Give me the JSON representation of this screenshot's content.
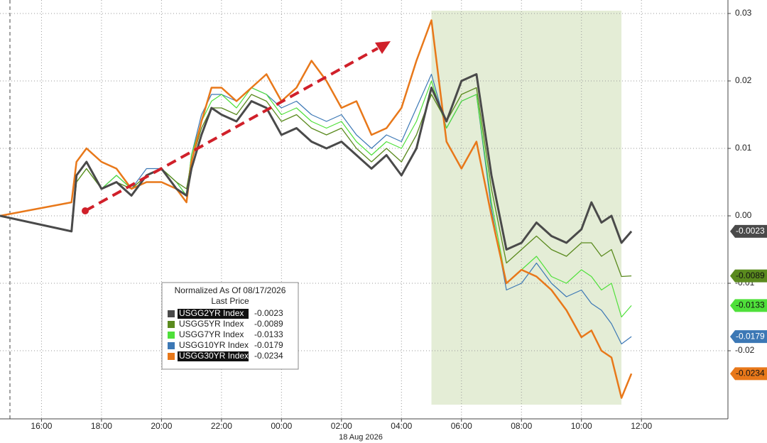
{
  "chart_data": {
    "type": "line",
    "x": [
      "2026-08-17 14:37",
      "2026-08-17 17:00",
      "2026-08-17 17:10",
      "2026-08-17 17:30",
      "2026-08-17 18:00",
      "2026-08-17 18:30",
      "2026-08-17 19:00",
      "2026-08-17 19:30",
      "2026-08-17 20:00",
      "2026-08-17 20:30",
      "2026-08-17 20:50",
      "2026-08-17 21:00",
      "2026-08-17 21:20",
      "2026-08-17 21:40",
      "2026-08-17 22:00",
      "2026-08-17 22:30",
      "2026-08-17 23:00",
      "2026-08-17 23:30",
      "2026-08-18 00:00",
      "2026-08-18 00:30",
      "2026-08-18 01:00",
      "2026-08-18 01:30",
      "2026-08-18 02:00",
      "2026-08-18 02:30",
      "2026-08-18 03:00",
      "2026-08-18 03:30",
      "2026-08-18 04:00",
      "2026-08-18 04:30",
      "2026-08-18 05:00",
      "2026-08-18 05:30",
      "2026-08-18 06:00",
      "2026-08-18 06:30",
      "2026-08-18 07:00",
      "2026-08-18 07:30",
      "2026-08-18 08:00",
      "2026-08-18 08:30",
      "2026-08-18 09:00",
      "2026-08-18 09:30",
      "2026-08-18 10:00",
      "2026-08-18 10:20",
      "2026-08-18 10:40",
      "2026-08-18 11:00",
      "2026-08-18 11:20",
      "2026-08-18 11:40"
    ],
    "series": [
      {
        "name": "USGG2YR Index",
        "color": "#4a4a4a",
        "last_price": -0.0023,
        "values": [
          0,
          -0.0023,
          0.006,
          0.008,
          0.004,
          0.005,
          0.003,
          0.006,
          0.007,
          0.004,
          0.003,
          0.007,
          0.012,
          0.016,
          0.015,
          0.014,
          0.017,
          0.016,
          0.012,
          0.013,
          0.011,
          0.01,
          0.011,
          0.009,
          0.007,
          0.009,
          0.006,
          0.01,
          0.019,
          0.014,
          0.02,
          0.021,
          0.006,
          -0.005,
          -0.004,
          -0.001,
          -0.003,
          -0.004,
          -0.002,
          0.002,
          -0.001,
          0.0,
          -0.004,
          -0.0023
        ]
      },
      {
        "name": "USGG5YR Index",
        "color": "#5a8a1e",
        "last_price": -0.0089,
        "values": [
          0,
          -0.0023,
          0.005,
          0.007,
          0.004,
          0.005,
          0.004,
          0.006,
          0.007,
          0.005,
          0.004,
          0.008,
          0.013,
          0.016,
          0.016,
          0.015,
          0.018,
          0.017,
          0.014,
          0.015,
          0.013,
          0.012,
          0.013,
          0.01,
          0.008,
          0.01,
          0.008,
          0.012,
          0.018,
          0.014,
          0.018,
          0.019,
          0.004,
          -0.007,
          -0.005,
          -0.003,
          -0.005,
          -0.006,
          -0.004,
          -0.004,
          -0.006,
          -0.005,
          -0.009,
          -0.0089
        ]
      },
      {
        "name": "USGG7YR Index",
        "color": "#4fe03a",
        "last_price": -0.0133,
        "values": [
          0,
          -0.0023,
          0.005,
          0.007,
          0.004,
          0.006,
          0.004,
          0.006,
          0.007,
          0.005,
          0.003,
          0.009,
          0.014,
          0.017,
          0.018,
          0.016,
          0.019,
          0.018,
          0.015,
          0.016,
          0.014,
          0.013,
          0.014,
          0.011,
          0.009,
          0.011,
          0.01,
          0.014,
          0.02,
          0.013,
          0.017,
          0.018,
          0.002,
          -0.01,
          -0.008,
          -0.006,
          -0.009,
          -0.01,
          -0.008,
          -0.009,
          -0.011,
          -0.01,
          -0.015,
          -0.0133
        ]
      },
      {
        "name": "USGG10YR Index",
        "color": "#3c78b5",
        "last_price": -0.0179,
        "values": [
          0,
          -0.0023,
          0.006,
          0.008,
          0.004,
          0.006,
          0.004,
          0.007,
          0.007,
          0.005,
          0.003,
          0.009,
          0.015,
          0.018,
          0.018,
          0.017,
          0.019,
          0.018,
          0.016,
          0.017,
          0.015,
          0.014,
          0.015,
          0.012,
          0.01,
          0.012,
          0.011,
          0.016,
          0.021,
          0.013,
          0.017,
          0.018,
          0.001,
          -0.011,
          -0.01,
          -0.007,
          -0.01,
          -0.012,
          -0.011,
          -0.013,
          -0.014,
          -0.016,
          -0.019,
          -0.0179
        ]
      },
      {
        "name": "USGG30YR Index",
        "color": "#e8781a",
        "last_price": -0.0234,
        "values": [
          0,
          0.002,
          0.008,
          0.01,
          0.008,
          0.007,
          0.004,
          0.005,
          0.005,
          0.004,
          0.002,
          0.008,
          0.014,
          0.019,
          0.019,
          0.017,
          0.019,
          0.021,
          0.017,
          0.019,
          0.023,
          0.02,
          0.016,
          0.017,
          0.012,
          0.013,
          0.016,
          0.023,
          0.029,
          0.011,
          0.007,
          0.011,
          0.0,
          -0.01,
          -0.008,
          -0.009,
          -0.011,
          -0.014,
          -0.018,
          -0.017,
          -0.02,
          -0.021,
          -0.027,
          -0.0234
        ]
      }
    ],
    "xlim": [
      "2026-08-17 14:37",
      "2026-08-18 14:53"
    ],
    "xticks": [
      {
        "value": "2026-08-17 16:00",
        "label": "16:00"
      },
      {
        "value": "2026-08-17 18:00",
        "label": "18:00"
      },
      {
        "value": "2026-08-17 20:00",
        "label": "20:00"
      },
      {
        "value": "2026-08-17 22:00",
        "label": "22:00"
      },
      {
        "value": "2026-08-18 00:00",
        "label": "00:00"
      },
      {
        "value": "2026-08-18 02:00",
        "label": "02:00"
      },
      {
        "value": "2026-08-18 04:00",
        "label": "04:00"
      },
      {
        "value": "2026-08-18 06:00",
        "label": "06:00"
      },
      {
        "value": "2026-08-18 08:00",
        "label": "08:00"
      },
      {
        "value": "2026-08-18 10:00",
        "label": "10:00"
      },
      {
        "value": "2026-08-18 12:00",
        "label": "12:00"
      }
    ],
    "x_date_label": "18 Aug 2026",
    "ylim": [
      -0.0301,
      0.032
    ],
    "yticks": [
      0.03,
      0.02,
      0.01,
      {
        "value": 0,
        "label": "0.00"
      },
      -0.01,
      -0.02
    ],
    "grid": true,
    "shaded_range": [
      "2026-08-18 05:00",
      "2026-08-18 11:20"
    ],
    "legend": {
      "title": "Normalized As Of 08/17/2026",
      "subtitle": "Last Price"
    }
  }
}
